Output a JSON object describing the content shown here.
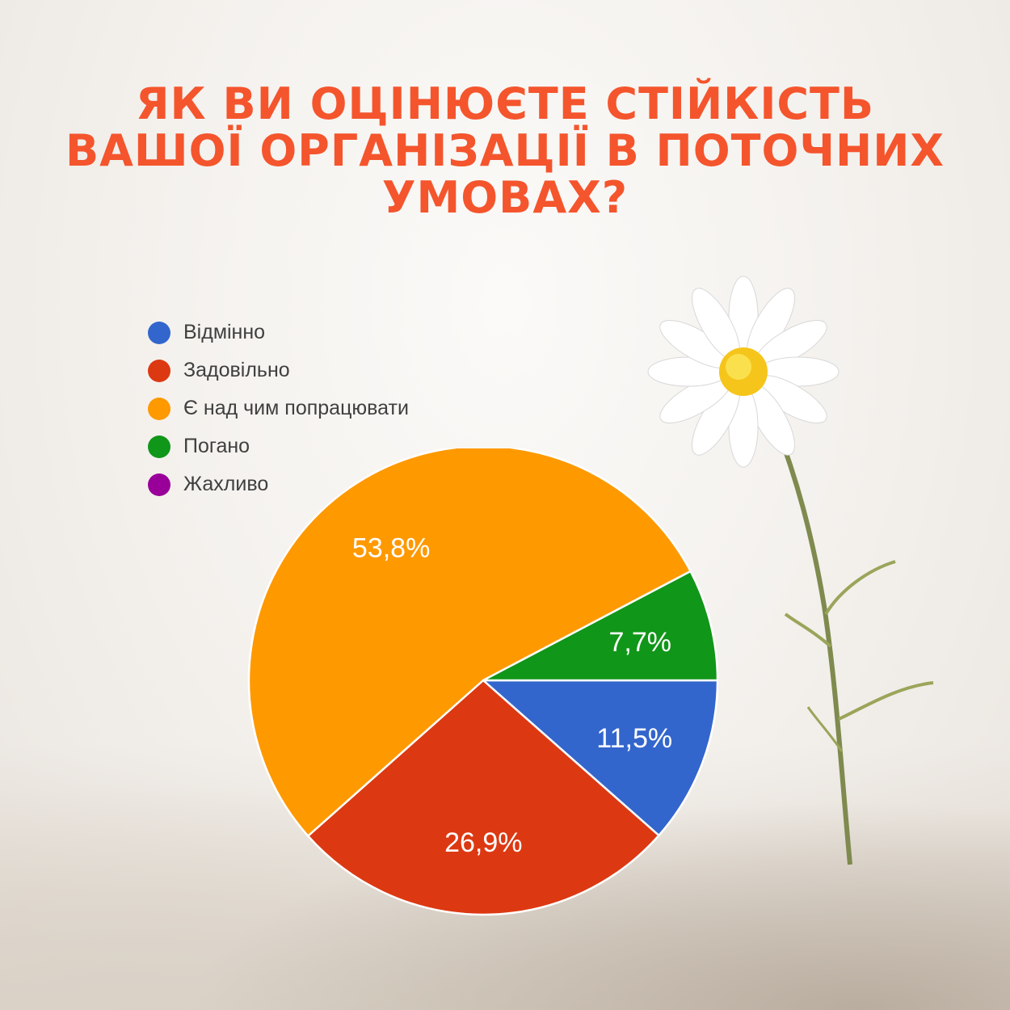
{
  "title": "ЯК ВИ ОЦІНЮЄТЕ СТІЙКІСТЬ ВАШОЇ ОРГАНІЗАЦІЇ В ПОТОЧНИХ УМОВАХ?",
  "title_color": "#f4552d",
  "chart_data": {
    "type": "pie",
    "title": "ЯК ВИ ОЦІНЮЄТЕ СТІЙКІСТЬ ВАШОЇ ОРГАНІЗАЦІЇ В ПОТОЧНИХ УМОВАХ?",
    "legend_position": "top-left",
    "slices": [
      {
        "label": "Відмінно",
        "value": 11.5,
        "display": "11,5%",
        "color": "#3366cc"
      },
      {
        "label": "Задовільно",
        "value": 26.9,
        "display": "26,9%",
        "color": "#dc3912"
      },
      {
        "label": "Є над чим попрацювати",
        "value": 53.8,
        "display": "53,8%",
        "color": "#ff9900"
      },
      {
        "label": "Погано",
        "value": 7.7,
        "display": "7,7%",
        "color": "#109618"
      },
      {
        "label": "Жахливо",
        "value": 0,
        "display": "",
        "color": "#990099"
      }
    ]
  }
}
